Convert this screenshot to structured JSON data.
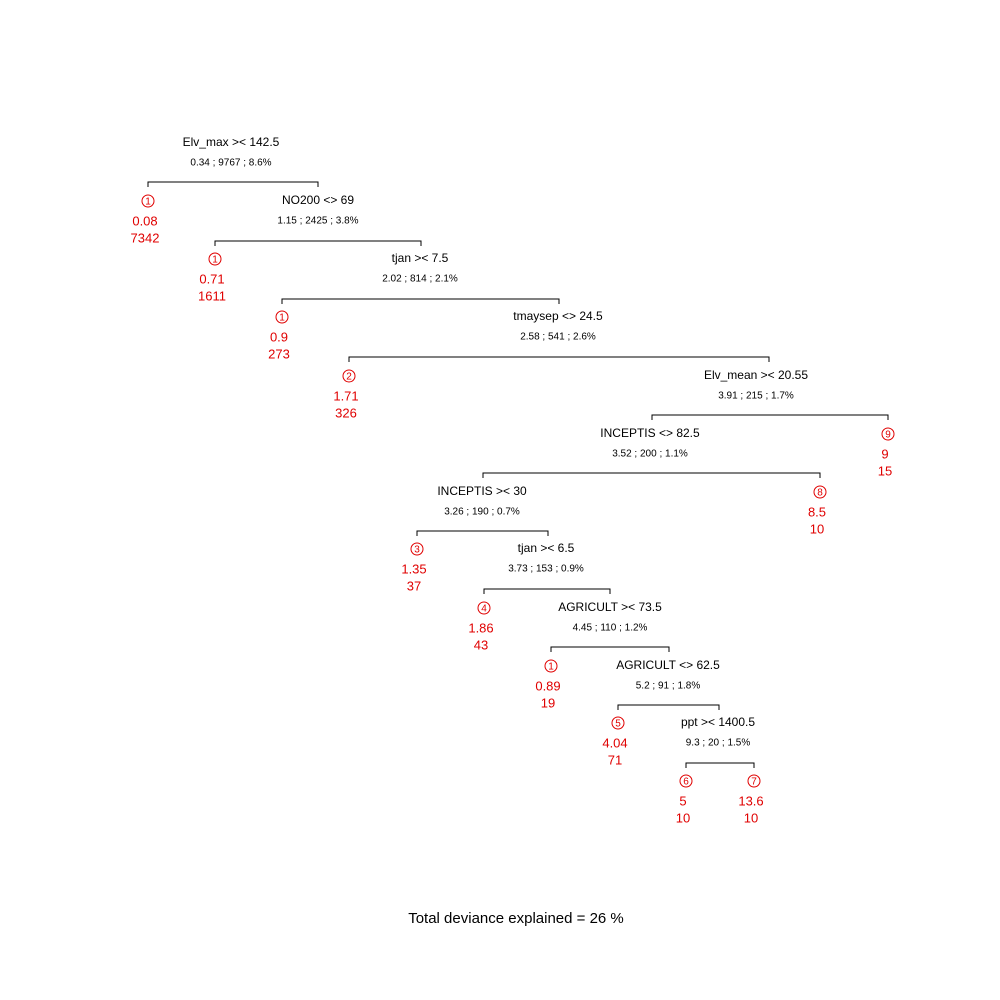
{
  "splits": [
    {
      "label": "Elv_max >< 142.5",
      "stats": "0.34 ; 9767 ; 8.6%"
    },
    {
      "label": "NO200 <> 69",
      "stats": "1.15 ; 2425 ; 3.8%"
    },
    {
      "label": "tjan >< 7.5",
      "stats": "2.02 ; 814 ; 2.1%"
    },
    {
      "label": "tmaysep <> 24.5",
      "stats": "2.58 ; 541 ; 2.6%"
    },
    {
      "label": "Elv_mean >< 20.55",
      "stats": "3.91 ; 215 ; 1.7%"
    },
    {
      "label": "INCEPTIS <> 82.5",
      "stats": "3.52 ; 200 ; 1.1%"
    },
    {
      "label": "INCEPTIS >< 30",
      "stats": "3.26 ; 190 ; 0.7%"
    },
    {
      "label": "tjan >< 6.5",
      "stats": "3.73 ; 153 ; 0.9%"
    },
    {
      "label": "AGRICULT >< 73.5",
      "stats": "4.45 ; 110 ; 1.2%"
    },
    {
      "label": "AGRICULT <> 62.5",
      "stats": "5.2 ; 91 ; 1.8%"
    },
    {
      "label": "ppt >< 1400.5",
      "stats": "9.3 ; 20 ; 1.5%"
    }
  ],
  "leaves": [
    {
      "group": 1,
      "value": 0.08,
      "count": 7342
    },
    {
      "group": 1,
      "value": 0.71,
      "count": 1611
    },
    {
      "group": 1,
      "value": 0.9,
      "count": 273
    },
    {
      "group": 2,
      "value": 1.71,
      "count": 326
    },
    {
      "group": 9,
      "value": 9,
      "count": 15
    },
    {
      "group": 8,
      "value": 8.5,
      "count": 10
    },
    {
      "group": 3,
      "value": 1.35,
      "count": 37
    },
    {
      "group": 4,
      "value": 1.86,
      "count": 43
    },
    {
      "group": 1,
      "value": 0.89,
      "count": 19
    },
    {
      "group": 5,
      "value": 4.04,
      "count": 71
    },
    {
      "group": 6,
      "value": 5,
      "count": 10
    },
    {
      "group": 7,
      "value": 13.6,
      "count": 10
    }
  ],
  "footer": "Total deviance explained = 26 %"
}
